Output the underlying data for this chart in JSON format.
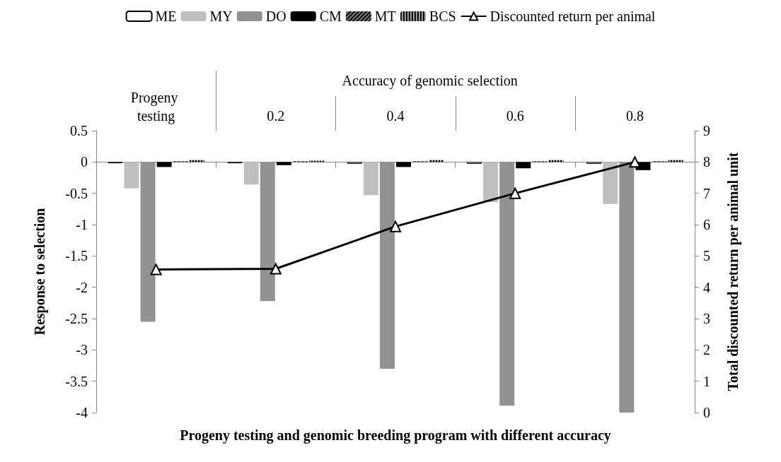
{
  "chart_data": {
    "type": "bar",
    "xlabel": "Progeny testing and genomic breeding program with different accuracy",
    "ylabel": "Response to selection",
    "y2label": "Total discounted return per animal unit",
    "annotations": [
      "Accuracy of genomic selection"
    ],
    "categories": [
      "Progeny testing",
      "0.2",
      "0.4",
      "0.6",
      "0.8"
    ],
    "series": [
      {
        "name": "ME",
        "color": "#ffffff",
        "values": [
          -0.02,
          -0.02,
          -0.03,
          -0.03,
          -0.03
        ]
      },
      {
        "name": "MY",
        "color": "#bfbfbf",
        "values": [
          -0.42,
          -0.36,
          -0.53,
          -0.64,
          -0.67
        ]
      },
      {
        "name": "DO",
        "color": "#929292",
        "values": [
          -2.55,
          -2.22,
          -3.3,
          -3.89,
          -4.0
        ]
      },
      {
        "name": "CM",
        "color": "#000000",
        "values": [
          -0.08,
          -0.05,
          -0.08,
          -0.1,
          -0.13
        ]
      },
      {
        "name": "MT",
        "color": "#7f7f7f",
        "values": [
          0.01,
          0.01,
          0.01,
          0.01,
          0.01
        ]
      },
      {
        "name": "BCS",
        "color": "#a6a6a6",
        "values": [
          0.03,
          0.02,
          0.03,
          0.03,
          0.03
        ]
      },
      {
        "name": "Discounted return per animal",
        "type": "line",
        "axis": "y2",
        "color": "#000000",
        "marker": "triangle",
        "values": [
          4.57,
          4.59,
          5.94,
          7.0,
          8.0
        ]
      }
    ],
    "ylim": [
      -4,
      0.5
    ],
    "yticks": [
      -4,
      -3.5,
      -3,
      -2.5,
      -2,
      -1.5,
      -1,
      -0.5,
      0,
      0.5
    ],
    "y2lim": [
      0,
      9
    ],
    "y2ticks": [
      0,
      1,
      2,
      3,
      4,
      5,
      6,
      7,
      8,
      9
    ],
    "legend": "top"
  }
}
